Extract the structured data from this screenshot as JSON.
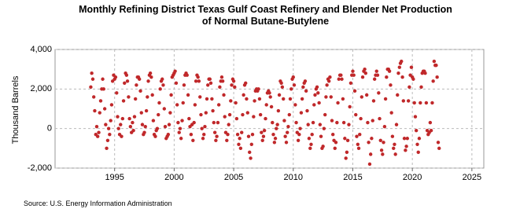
{
  "chart_data": {
    "type": "scatter",
    "title": "Monthly Refining District Texas Gulf Coast Refinery and Blender Net Production of Normal Butane-Butylene",
    "ylabel": "Thousand Barrels",
    "source": "Source: U.S. Energy Information Administration",
    "color": "#c0282a",
    "grid": true,
    "xlim": [
      1990,
      2026
    ],
    "xticks": [
      1995,
      2000,
      2005,
      2010,
      2015,
      2020,
      2025
    ],
    "ylim": [
      -2000,
      4000
    ],
    "yticks": [
      {
        "value": -2000,
        "label": "-2,000"
      },
      0,
      {
        "value": 2000,
        "label": "2,000"
      },
      {
        "value": 4000,
        "label": "4,000"
      }
    ],
    "x": [
      1993.0,
      1993.08,
      1993.17,
      1993.25,
      1993.33,
      1993.42,
      1993.5,
      1993.58,
      1993.67,
      1993.75,
      1993.83,
      1993.92,
      1994.0,
      1994.08,
      1994.17,
      1994.25,
      1994.33,
      1994.42,
      1994.5,
      1994.58,
      1994.67,
      1994.75,
      1994.83,
      1994.92,
      1995.0,
      1995.08,
      1995.17,
      1995.25,
      1995.33,
      1995.42,
      1995.5,
      1995.58,
      1995.67,
      1995.75,
      1995.83,
      1995.92,
      1996.0,
      1996.08,
      1996.17,
      1996.25,
      1996.33,
      1996.42,
      1996.5,
      1996.58,
      1996.67,
      1996.75,
      1996.83,
      1996.92,
      1997.0,
      1997.08,
      1997.17,
      1997.25,
      1997.33,
      1997.42,
      1997.5,
      1997.58,
      1997.67,
      1997.75,
      1997.83,
      1997.92,
      1998.0,
      1998.08,
      1998.17,
      1998.25,
      1998.33,
      1998.42,
      1998.5,
      1998.58,
      1998.67,
      1998.75,
      1998.83,
      1998.92,
      1999.0,
      1999.08,
      1999.17,
      1999.25,
      1999.33,
      1999.42,
      1999.5,
      1999.58,
      1999.67,
      1999.75,
      1999.83,
      1999.92,
      2000.0,
      2000.08,
      2000.17,
      2000.25,
      2000.33,
      2000.42,
      2000.5,
      2000.58,
      2000.67,
      2000.75,
      2000.83,
      2000.92,
      2001.0,
      2001.08,
      2001.17,
      2001.25,
      2001.33,
      2001.42,
      2001.5,
      2001.58,
      2001.67,
      2001.75,
      2001.83,
      2001.92,
      2002.0,
      2002.08,
      2002.17,
      2002.25,
      2002.33,
      2002.42,
      2002.5,
      2002.58,
      2002.67,
      2002.75,
      2002.83,
      2002.92,
      2003.0,
      2003.08,
      2003.17,
      2003.25,
      2003.33,
      2003.42,
      2003.5,
      2003.58,
      2003.67,
      2003.75,
      2003.83,
      2003.92,
      2004.0,
      2004.08,
      2004.17,
      2004.25,
      2004.33,
      2004.42,
      2004.5,
      2004.58,
      2004.67,
      2004.75,
      2004.83,
      2004.92,
      2005.0,
      2005.08,
      2005.17,
      2005.25,
      2005.33,
      2005.42,
      2005.5,
      2005.58,
      2005.67,
      2005.75,
      2005.83,
      2005.92,
      2006.0,
      2006.08,
      2006.17,
      2006.25,
      2006.33,
      2006.42,
      2006.5,
      2006.58,
      2006.67,
      2006.75,
      2006.83,
      2006.92,
      2007.0,
      2007.08,
      2007.17,
      2007.25,
      2007.33,
      2007.42,
      2007.5,
      2007.58,
      2007.67,
      2007.75,
      2007.83,
      2007.92,
      2008.0,
      2008.08,
      2008.17,
      2008.25,
      2008.33,
      2008.42,
      2008.5,
      2008.58,
      2008.67,
      2008.75,
      2008.83,
      2008.92,
      2009.0,
      2009.08,
      2009.17,
      2009.25,
      2009.33,
      2009.42,
      2009.5,
      2009.58,
      2009.67,
      2009.75,
      2009.83,
      2009.92,
      2010.0,
      2010.08,
      2010.17,
      2010.25,
      2010.33,
      2010.42,
      2010.5,
      2010.58,
      2010.67,
      2010.75,
      2010.83,
      2010.92,
      2011.0,
      2011.08,
      2011.17,
      2011.25,
      2011.33,
      2011.42,
      2011.5,
      2011.58,
      2011.67,
      2011.75,
      2011.83,
      2011.92,
      2012.0,
      2012.08,
      2012.17,
      2012.25,
      2012.33,
      2012.42,
      2012.5,
      2012.58,
      2012.67,
      2012.75,
      2012.83,
      2012.92,
      2013.0,
      2013.08,
      2013.17,
      2013.25,
      2013.33,
      2013.42,
      2013.5,
      2013.58,
      2013.67,
      2013.75,
      2013.83,
      2013.92,
      2014.0,
      2014.08,
      2014.17,
      2014.25,
      2014.33,
      2014.42,
      2014.5,
      2014.58,
      2014.67,
      2014.75,
      2014.83,
      2014.92,
      2015.0,
      2015.08,
      2015.17,
      2015.25,
      2015.33,
      2015.42,
      2015.5,
      2015.58,
      2015.67,
      2015.75,
      2015.83,
      2015.92,
      2016.0,
      2016.08,
      2016.17,
      2016.25,
      2016.33,
      2016.42,
      2016.5,
      2016.58,
      2016.67,
      2016.75,
      2016.83,
      2016.92,
      2017.0,
      2017.08,
      2017.17,
      2017.25,
      2017.33,
      2017.42,
      2017.5,
      2017.58,
      2017.67,
      2017.75,
      2017.83,
      2017.92,
      2018.0,
      2018.08,
      2018.17,
      2018.25,
      2018.33,
      2018.42,
      2018.5,
      2018.58,
      2018.67,
      2018.75,
      2018.83,
      2018.92,
      2019.0,
      2019.08,
      2019.17,
      2019.25,
      2019.33,
      2019.42,
      2019.5,
      2019.58,
      2019.67,
      2019.75,
      2019.83,
      2019.92,
      2020.0,
      2020.08,
      2020.17,
      2020.25,
      2020.33,
      2020.42,
      2020.5,
      2020.58,
      2020.67,
      2020.75,
      2020.83,
      2020.92,
      2021.0,
      2021.08,
      2021.17,
      2021.25,
      2021.33,
      2021.42,
      2021.5,
      2021.58,
      2021.67,
      2021.75,
      2021.83,
      2021.92,
      2022.0,
      2022.08,
      2022.17,
      2022.25
    ],
    "values": [
      2100,
      2800,
      2500,
      1600,
      900,
      -300,
      100,
      -400,
      -200,
      800,
      1400,
      2000,
      2500,
      2000,
      1000,
      200,
      -1000,
      -600,
      0,
      -300,
      400,
      1200,
      2400,
      2700,
      2500,
      2600,
      1800,
      600,
      0,
      -300,
      200,
      -400,
      500,
      1400,
      2300,
      2800,
      2700,
      2400,
      1600,
      500,
      100,
      -200,
      300,
      -100,
      600,
      1500,
      2200,
      2600,
      2600,
      2500,
      1900,
      800,
      200,
      -300,
      -200,
      100,
      900,
      1600,
      2400,
      2700,
      2800,
      2600,
      1700,
      400,
      -300,
      -400,
      -100,
      0,
      700,
      1300,
      2000,
      2400,
      2500,
      2200,
      1000,
      100,
      -500,
      -400,
      -300,
      200,
      800,
      1700,
      2600,
      2700,
      2800,
      2900,
      2300,
      1200,
      300,
      -200,
      0,
      -500,
      400,
      1300,
      2200,
      2700,
      2800,
      2700,
      1700,
      500,
      100,
      -300,
      200,
      -600,
      300,
      1200,
      2400,
      2700,
      2600,
      2400,
      1600,
      700,
      0,
      -500,
      -300,
      100,
      800,
      1500,
      2200,
      2500,
      2500,
      2300,
      1500,
      900,
      300,
      -200,
      -600,
      -400,
      300,
      1200,
      2100,
      2400,
      2600,
      2400,
      1700,
      600,
      -200,
      -600,
      -300,
      200,
      700,
      1400,
      2200,
      2500,
      2400,
      2100,
      1300,
      500,
      -300,
      -800,
      -500,
      -1000,
      -200,
      700,
      1700,
      2200,
      2300,
      1500,
      800,
      -400,
      -1200,
      -1500,
      -800,
      -300,
      600,
      1400,
      1900,
      2000,
      1900,
      2000,
      1500,
      700,
      -200,
      -600,
      -400,
      -100,
      500,
      1200,
      1800,
      1900,
      1800,
      1600,
      1100,
      300,
      -300,
      -700,
      -500,
      0,
      200,
      900,
      1700,
      2400,
      2300,
      2100,
      1500,
      400,
      -400,
      -700,
      -200,
      100,
      700,
      1500,
      2000,
      2500,
      2600,
      2200,
      1200,
      300,
      -200,
      -600,
      -300,
      0,
      800,
      1500,
      2100,
      2300,
      2400,
      1900,
      900,
      200,
      -500,
      -1000,
      -800,
      -300,
      300,
      1200,
      1700,
      2000,
      2100,
      1800,
      1300,
      200,
      -400,
      -1000,
      -900,
      0,
      700,
      1600,
      2200,
      2500,
      2400,
      2600,
      1600,
      400,
      -300,
      -600,
      -1000,
      -700,
      300,
      1300,
      2500,
      2700,
      2700,
      2500,
      1500,
      300,
      -500,
      -1500,
      -1200,
      -600,
      200,
      1100,
      2300,
      2700,
      2900,
      2700,
      1900,
      700,
      -400,
      -800,
      -1000,
      -300,
      500,
      1600,
      2600,
      2900,
      3000,
      2800,
      1700,
      300,
      -700,
      -1800,
      -1300,
      -500,
      400,
      1400,
      2500,
      2700,
      2900,
      2700,
      1800,
      500,
      -600,
      -1100,
      -1300,
      -700,
      100,
      1500,
      2600,
      3000,
      3000,
      2900,
      2200,
      800,
      -400,
      -1000,
      -800,
      -1300,
      200,
      1700,
      2800,
      3100,
      3300,
      3400,
      2600,
      1400,
      -500,
      -1100,
      -900,
      -500,
      1400,
      2100,
      2700,
      3100,
      2600,
      2500,
      1300,
      600,
      -100,
      -800,
      -1200,
      -500,
      1300,
      2100,
      2800,
      2900,
      2900,
      2800,
      1300,
      -100,
      -300,
      -200,
      300,
      -100,
      1300,
      2400,
      3400,
      3200,
      3200,
      2600,
      -700,
      -1000
    ]
  }
}
